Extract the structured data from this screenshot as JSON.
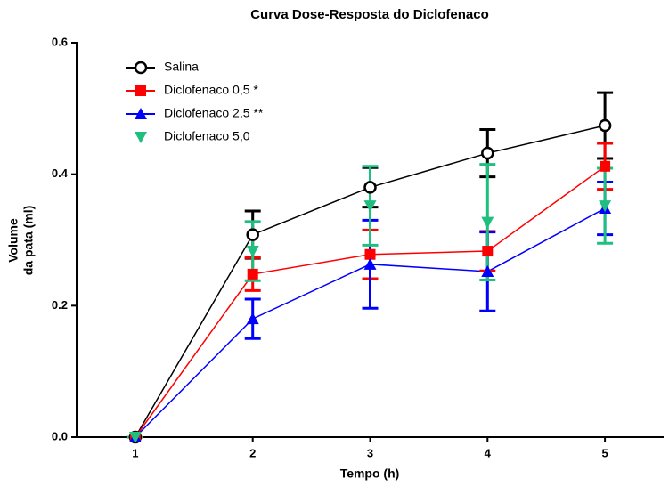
{
  "chart_data": {
    "type": "line",
    "title": "Curva Dose-Resposta do Diclofenaco",
    "xlabel": "Tempo (h)",
    "ylabel": [
      "Volume",
      "da pata (ml)"
    ],
    "categories": [
      "1",
      "2",
      "3",
      "4",
      "5"
    ],
    "ylim": [
      0,
      0.6
    ],
    "yticks": [
      {
        "value": 0,
        "label": "0.0"
      },
      0.2,
      0.4,
      0.6
    ],
    "legend": "top-left",
    "series": [
      {
        "name": "Salina",
        "color": "#000000",
        "marker": "circle-open",
        "line": true,
        "values": [
          0,
          0.308,
          0.38,
          0.432,
          0.474
        ],
        "errors": [
          0,
          0.036,
          0.03,
          0.036,
          0.05
        ]
      },
      {
        "name": "Diclofenaco 0,5 *",
        "color": "#ff0000",
        "marker": "square",
        "line": true,
        "values": [
          0,
          0.248,
          0.278,
          0.283,
          0.412
        ],
        "errors": [
          0,
          0.025,
          0.037,
          0.03,
          0.035
        ]
      },
      {
        "name": "Diclofenaco 2,5 **",
        "color": "#0000ff",
        "marker": "triangle-up",
        "line": true,
        "values": [
          0,
          0.18,
          0.263,
          0.252,
          0.348
        ],
        "errors": [
          0,
          0.03,
          0.067,
          0.06,
          0.04
        ]
      },
      {
        "name": "Diclofenaco 5,0",
        "color": "#1fbf80",
        "marker": "triangle-down",
        "line": false,
        "values": [
          0,
          0.283,
          0.352,
          0.327,
          0.352
        ],
        "errors": [
          0,
          0.045,
          0.06,
          0.088,
          0.057
        ]
      }
    ]
  }
}
